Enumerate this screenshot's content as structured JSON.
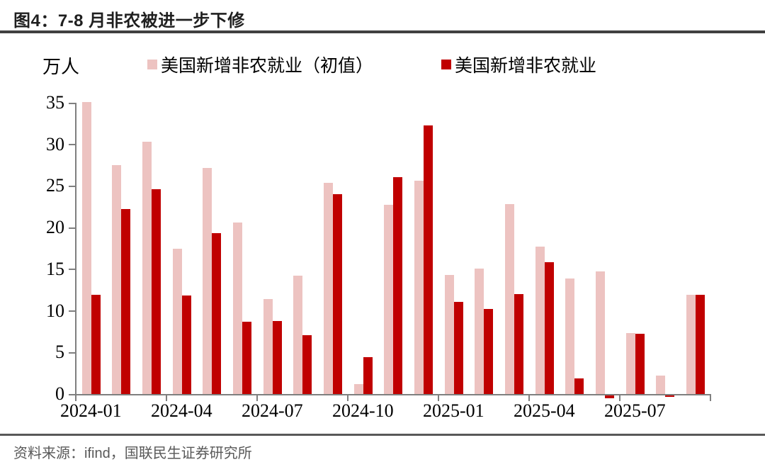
{
  "figure": {
    "title": "图4：7-8 月非农被进一步下修",
    "source": "资料来源：ifind，国联民生证券研究所"
  },
  "chart_data": {
    "type": "bar",
    "title": "图4：7-8 月非农被进一步下修",
    "unit_label": "万人",
    "xlabel": "",
    "ylabel": "万人",
    "ylim": [
      0,
      35
    ],
    "y_ticks": [
      0,
      5,
      10,
      15,
      20,
      25,
      30,
      35
    ],
    "grid": false,
    "legend_position": "top",
    "categories": [
      "2024-01",
      "2024-02",
      "2024-03",
      "2024-04",
      "2024-05",
      "2024-06",
      "2024-07",
      "2024-08",
      "2024-09",
      "2024-10",
      "2024-11",
      "2024-12",
      "2025-01",
      "2025-02",
      "2025-03",
      "2025-04",
      "2025-05",
      "2025-06",
      "2025-07",
      "2025-08",
      "2025-09"
    ],
    "x_tick_labels": [
      "2024-01",
      "2024-04",
      "2024-07",
      "2024-10",
      "2025-01",
      "2025-04",
      "2025-07"
    ],
    "x_tick_label_indices": [
      0,
      3,
      6,
      9,
      12,
      15,
      18
    ],
    "series": [
      {
        "name": "美国新增非农就业（初值）",
        "color": "#EDC3C1",
        "values": [
          35.1,
          27.5,
          30.3,
          17.5,
          27.2,
          20.6,
          11.4,
          14.2,
          25.4,
          1.2,
          22.7,
          25.6,
          14.3,
          15.1,
          22.8,
          17.7,
          13.9,
          14.7,
          7.3,
          2.2,
          11.9
        ]
      },
      {
        "name": "美国新增非农就业",
        "color": "#C00000",
        "values": [
          11.9,
          22.2,
          24.6,
          11.8,
          19.3,
          8.7,
          8.8,
          7.1,
          24.0,
          4.4,
          26.1,
          32.3,
          11.1,
          10.2,
          12.0,
          15.8,
          1.9,
          -0.3,
          7.2,
          -0.2,
          11.9
        ]
      }
    ]
  }
}
